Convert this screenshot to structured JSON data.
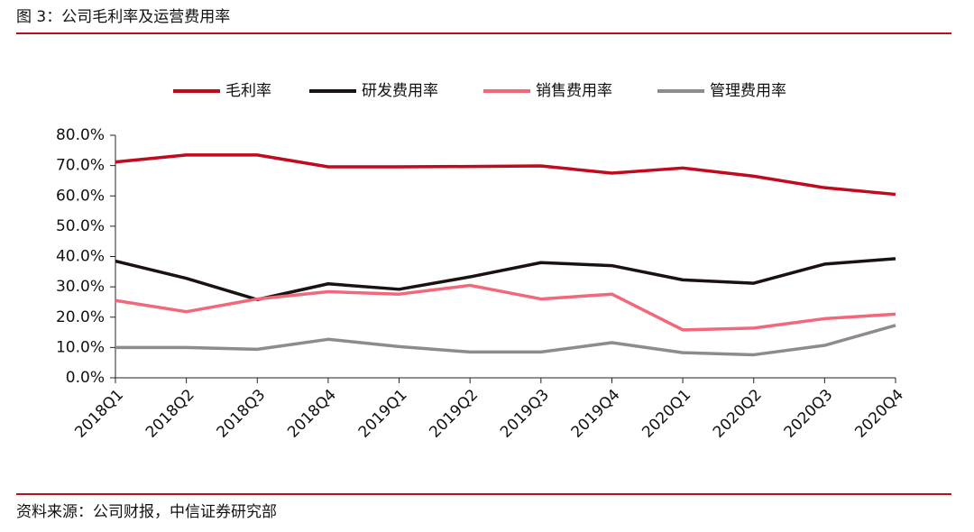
{
  "chart_data": {
    "type": "line",
    "title": "图 3：公司毛利率及运营费用率",
    "source": "资料来源：公司财报，中信证券研究部",
    "categories": [
      "2018Q1",
      "2018Q2",
      "2018Q3",
      "2018Q4",
      "2019Q1",
      "2019Q2",
      "2019Q3",
      "2019Q4",
      "2020Q1",
      "2020Q2",
      "2020Q3",
      "2020Q4"
    ],
    "series": [
      {
        "name": "毛利率",
        "color": "#c00a1e",
        "values": [
          71.2,
          73.5,
          73.5,
          69.6,
          69.6,
          69.7,
          69.9,
          67.5,
          69.2,
          66.5,
          62.7,
          60.5
        ]
      },
      {
        "name": "研发费用率",
        "color": "#1a1111",
        "values": [
          38.5,
          32.8,
          25.8,
          31.0,
          29.2,
          33.3,
          38.0,
          37.0,
          32.3,
          31.2,
          37.5,
          39.3
        ]
      },
      {
        "name": "销售费用率",
        "color": "#f0687a",
        "values": [
          25.5,
          21.8,
          26.0,
          28.4,
          27.6,
          30.5,
          26.0,
          27.6,
          15.8,
          16.4,
          19.5,
          21.0
        ]
      },
      {
        "name": "管理费用率",
        "color": "#8c8c8c",
        "values": [
          10.0,
          10.0,
          9.4,
          12.7,
          10.3,
          8.5,
          8.5,
          11.6,
          8.3,
          7.6,
          10.7,
          17.3
        ]
      }
    ],
    "ylim": [
      0,
      80
    ],
    "yticks": [
      {
        "value": 0,
        "label": "0.0%"
      },
      {
        "value": 10,
        "label": "10.0%"
      },
      {
        "value": 20,
        "label": "20.0%"
      },
      {
        "value": 30,
        "label": "30.0%"
      },
      {
        "value": 40,
        "label": "40.0%"
      },
      {
        "value": 50,
        "label": "50.0%"
      },
      {
        "value": 60,
        "label": "60.0%"
      },
      {
        "value": 70,
        "label": "70.0%"
      },
      {
        "value": 80,
        "label": "80.0%"
      }
    ],
    "legend": "top"
  }
}
